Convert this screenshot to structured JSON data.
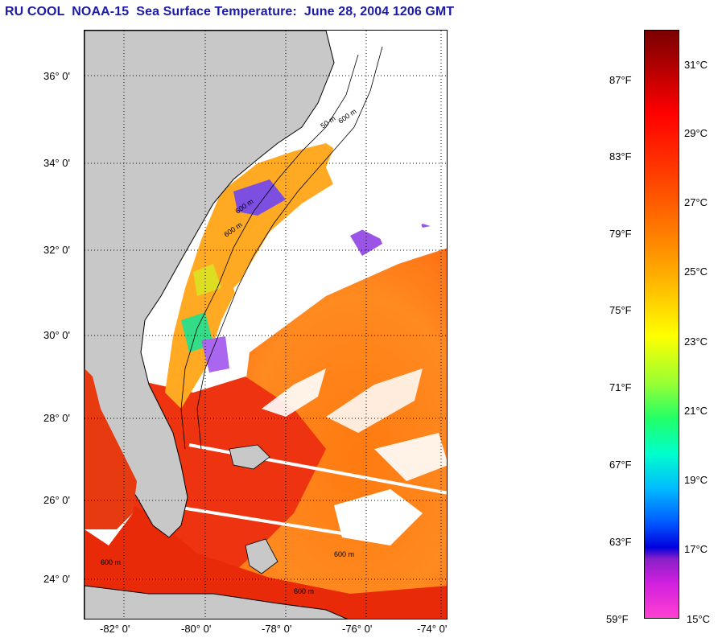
{
  "title": "RU COOL  NOAA-15  Sea Surface Temperature:  June 28, 2004 1206 GMT",
  "map": {
    "latitude_labels": [
      "36° 0'",
      "34° 0'",
      "32° 0'",
      "30° 0'",
      "28° 0'",
      "26° 0'",
      "24° 0'"
    ],
    "longitude_labels": [
      "-82° 0'",
      "-80° 0'",
      "-78° 0'",
      "-76° 0'",
      "-74° 0'"
    ],
    "contour_labels": [
      "50 m",
      "600 m",
      "600 m",
      "600 m",
      "600 m",
      "600 m",
      "600 m"
    ]
  },
  "colorbar": {
    "fahrenheit": [
      "87°F",
      "83°F",
      "79°F",
      "75°F",
      "71°F",
      "67°F",
      "63°F",
      "59°F"
    ],
    "celsius": [
      "31°C",
      "29°C",
      "27°C",
      "25°C",
      "23°C",
      "21°C",
      "19°C",
      "17°C",
      "15°C"
    ]
  },
  "colors": {
    "title": "#1a1aa6",
    "land": "#c8c8c8",
    "warm_water": "#ff7a1a",
    "hot_water": "#ee2a0a",
    "cloud": "#ffffff"
  }
}
